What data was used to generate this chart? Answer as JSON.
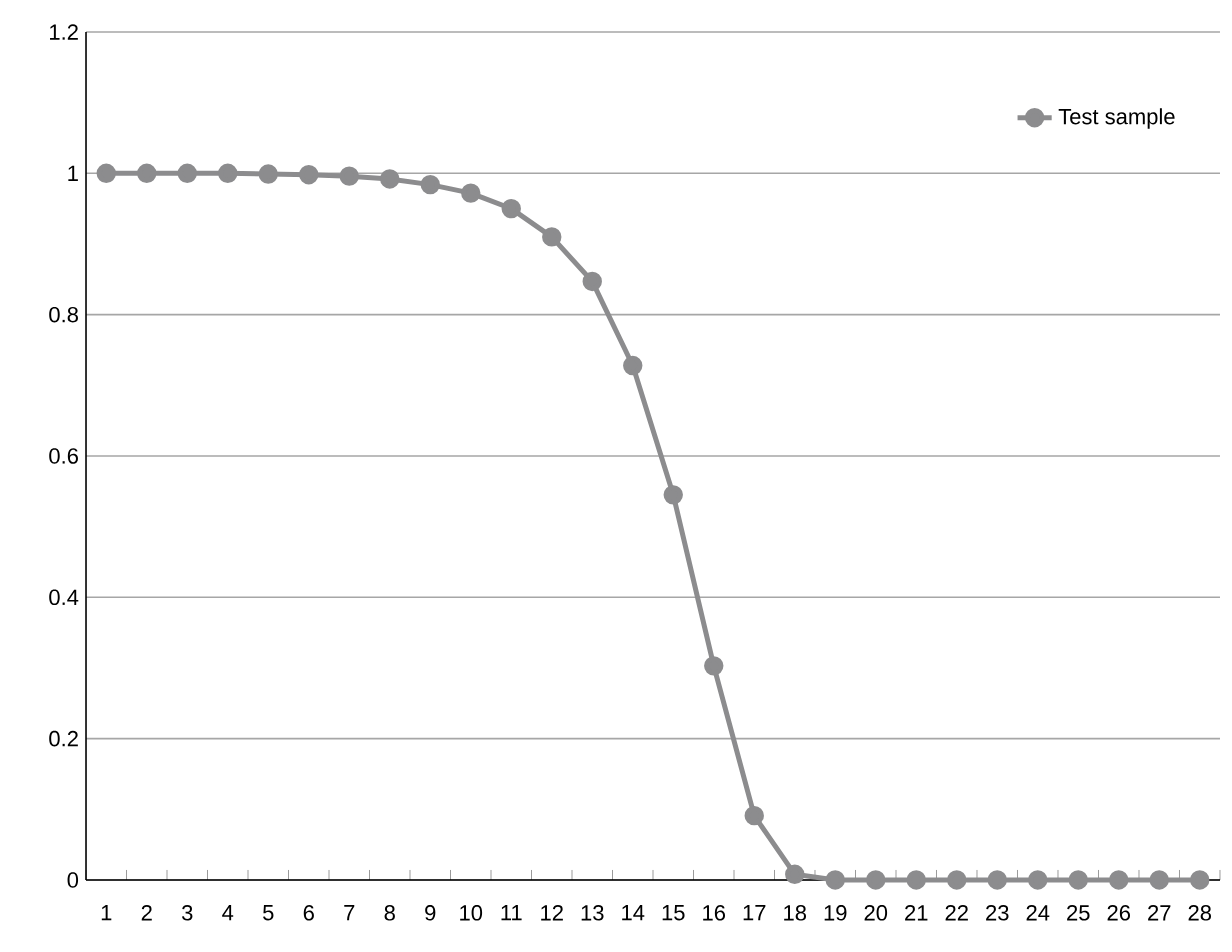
{
  "chart_data": {
    "type": "line",
    "categories": [
      "1",
      "2",
      "3",
      "4",
      "5",
      "6",
      "7",
      "8",
      "9",
      "10",
      "11",
      "12",
      "13",
      "14",
      "15",
      "16",
      "17",
      "18",
      "19",
      "20",
      "21",
      "22",
      "23",
      "24",
      "25",
      "26",
      "27",
      "28"
    ],
    "series": [
      {
        "name": "Test sample",
        "color": "#8c8c8e",
        "values": [
          1,
          1,
          1,
          1,
          0.999,
          0.998,
          0.996,
          0.992,
          0.984,
          0.972,
          0.95,
          0.91,
          0.847,
          0.728,
          0.545,
          0.303,
          0.091,
          0.008,
          0,
          0,
          0,
          0,
          0,
          0,
          0,
          0,
          0,
          0
        ]
      }
    ],
    "ylim": [
      0,
      1.2
    ],
    "yticks": [
      0,
      0.2,
      0.4,
      0.6,
      0.8,
      1,
      1.2
    ],
    "grid": "y",
    "legend": "top right",
    "marker": "circle",
    "line_style": "solid"
  }
}
